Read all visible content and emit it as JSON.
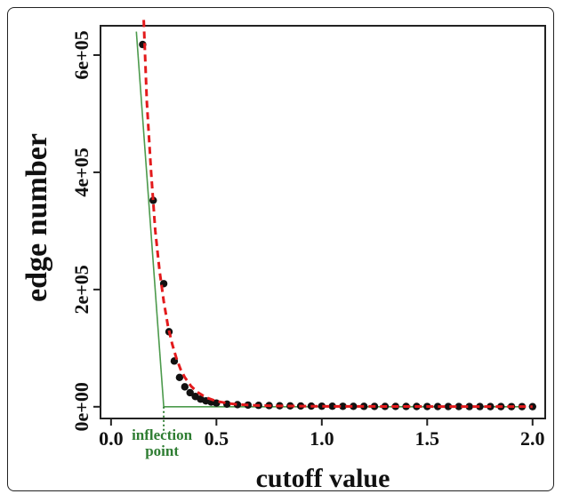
{
  "chart_data": {
    "type": "scatter",
    "xlabel": "cutoff value",
    "ylabel": "edge number",
    "xlim": [
      -0.05,
      2.06
    ],
    "ylim": [
      -20000,
      650000
    ],
    "x_ticks": [
      0.0,
      0.5,
      1.0,
      1.5,
      2.0
    ],
    "x_tick_labels": [
      "0.0",
      "0.5",
      "1.0",
      "1.5",
      "2.0"
    ],
    "y_ticks": [
      0,
      200000,
      400000,
      600000
    ],
    "y_tick_labels": [
      "0e+00",
      "2e+05",
      "4e+05",
      "6e+05"
    ],
    "grid": false,
    "series": [
      {
        "kind": "points",
        "color": "#111111",
        "x": [
          0.15,
          0.2,
          0.25,
          0.275,
          0.3,
          0.325,
          0.35,
          0.375,
          0.4,
          0.425,
          0.45,
          0.475,
          0.5,
          0.55,
          0.6,
          0.65,
          0.7,
          0.75,
          0.8,
          0.85,
          0.9,
          0.95,
          1.0,
          1.05,
          1.1,
          1.15,
          1.2,
          1.25,
          1.3,
          1.35,
          1.4,
          1.45,
          1.5,
          1.55,
          1.6,
          1.65,
          1.7,
          1.75,
          1.8,
          1.85,
          1.9,
          1.95,
          2.0
        ],
        "y": [
          618000,
          352000,
          210000,
          128000,
          78000,
          50000,
          34000,
          24000,
          17500,
          13000,
          10000,
          8000,
          6200,
          4600,
          3600,
          2900,
          2400,
          2000,
          1700,
          1500,
          1300,
          1150,
          1000,
          900,
          820,
          750,
          680,
          620,
          570,
          530,
          490,
          450,
          420,
          390,
          360,
          340,
          320,
          300,
          280,
          260,
          245,
          230,
          220
        ]
      },
      {
        "kind": "fitted-curve",
        "style": "dashed",
        "color": "#e31a1c",
        "x": [
          0.155,
          0.17,
          0.19,
          0.21,
          0.23,
          0.25,
          0.27,
          0.29,
          0.31,
          0.33,
          0.35,
          0.38,
          0.41,
          0.45,
          0.5,
          0.55,
          0.6,
          0.7,
          0.8,
          0.9,
          1.0,
          1.2,
          1.4,
          1.6,
          1.8,
          2.0
        ],
        "y": [
          660000,
          520000,
          400000,
          300000,
          232000,
          180000,
          138000,
          107000,
          83000,
          64000,
          50000,
          35000,
          25000,
          16000,
          9500,
          6000,
          4000,
          2200,
          1400,
          1000,
          800,
          550,
          420,
          330,
          270,
          230
        ]
      },
      {
        "kind": "tangent-line",
        "color": "#4c9a4c",
        "x": [
          0.12,
          0.25
        ],
        "y": [
          640000,
          0
        ]
      },
      {
        "kind": "baseline",
        "color": "#4c9a4c",
        "x": [
          0.25,
          1.95
        ],
        "y": [
          0,
          0
        ]
      }
    ],
    "annotations": [
      {
        "text_lines": [
          "inflection",
          "point"
        ],
        "x": 0.25,
        "y": 0,
        "color": "#2e7d32"
      }
    ]
  }
}
